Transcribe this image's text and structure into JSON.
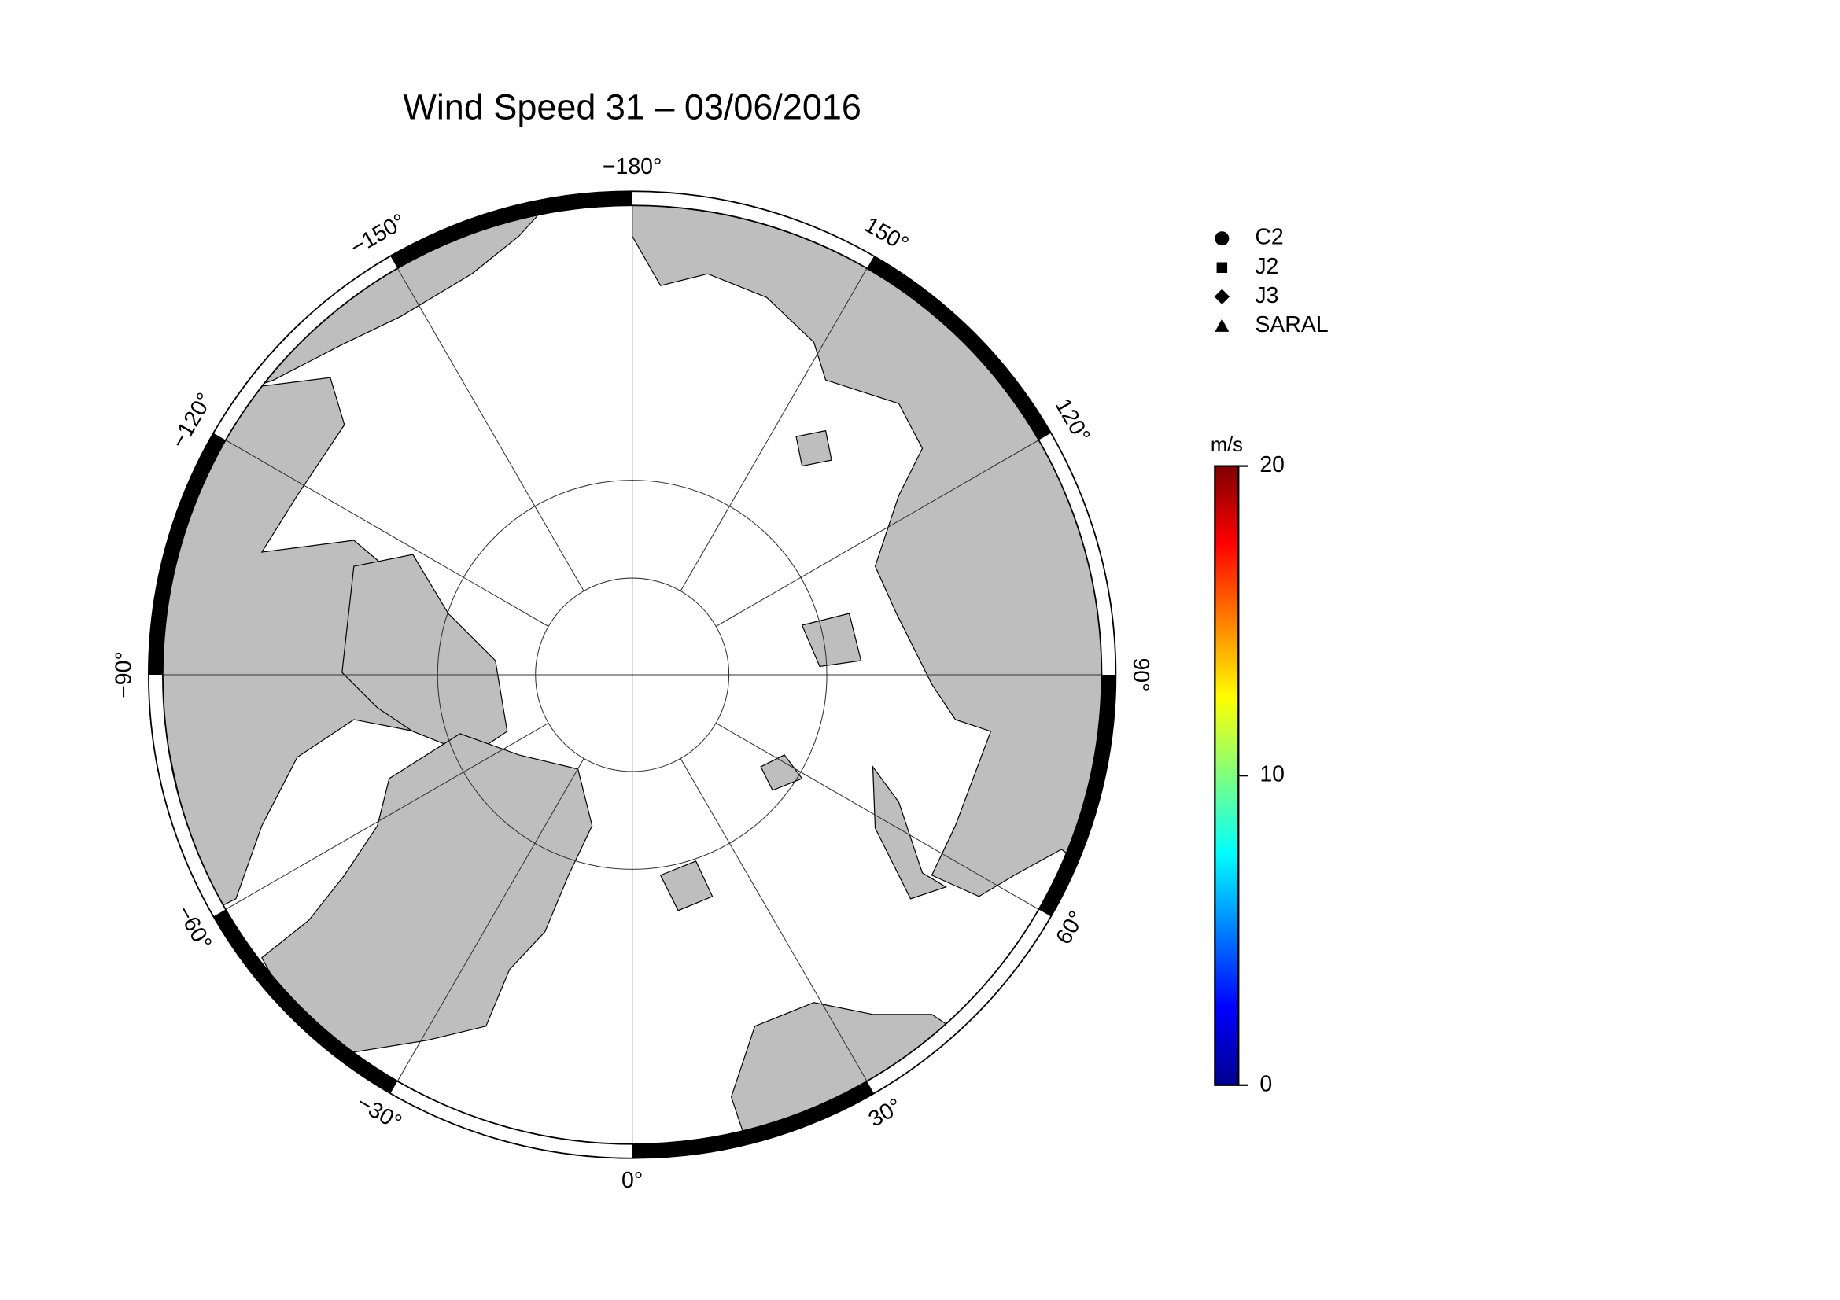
{
  "title": "Wind Speed 31 – 03/06/2016",
  "meridian_labels": [
    {
      "value": -180,
      "label": "−180°"
    },
    {
      "value": -150,
      "label": "−150°"
    },
    {
      "value": -120,
      "label": "−120°"
    },
    {
      "value": -90,
      "label": "−90°"
    },
    {
      "value": -60,
      "label": "−60°"
    },
    {
      "value": -30,
      "label": "−30°"
    },
    {
      "value": 0,
      "label": "0°"
    },
    {
      "value": 30,
      "label": "30°"
    },
    {
      "value": 60,
      "label": "60°"
    },
    {
      "value": 90,
      "label": "90°"
    },
    {
      "value": 120,
      "label": "120°"
    },
    {
      "value": 150,
      "label": "150°"
    }
  ],
  "legend": [
    {
      "label": "C2",
      "marker": "circle"
    },
    {
      "label": "J2",
      "marker": "square"
    },
    {
      "label": "J3",
      "marker": "diamond"
    },
    {
      "label": "SARAL",
      "marker": "triangle"
    }
  ],
  "colorbar": {
    "label": "m/s",
    "lim": [
      0,
      20
    ],
    "ticks": [
      0,
      10,
      20
    ]
  }
}
